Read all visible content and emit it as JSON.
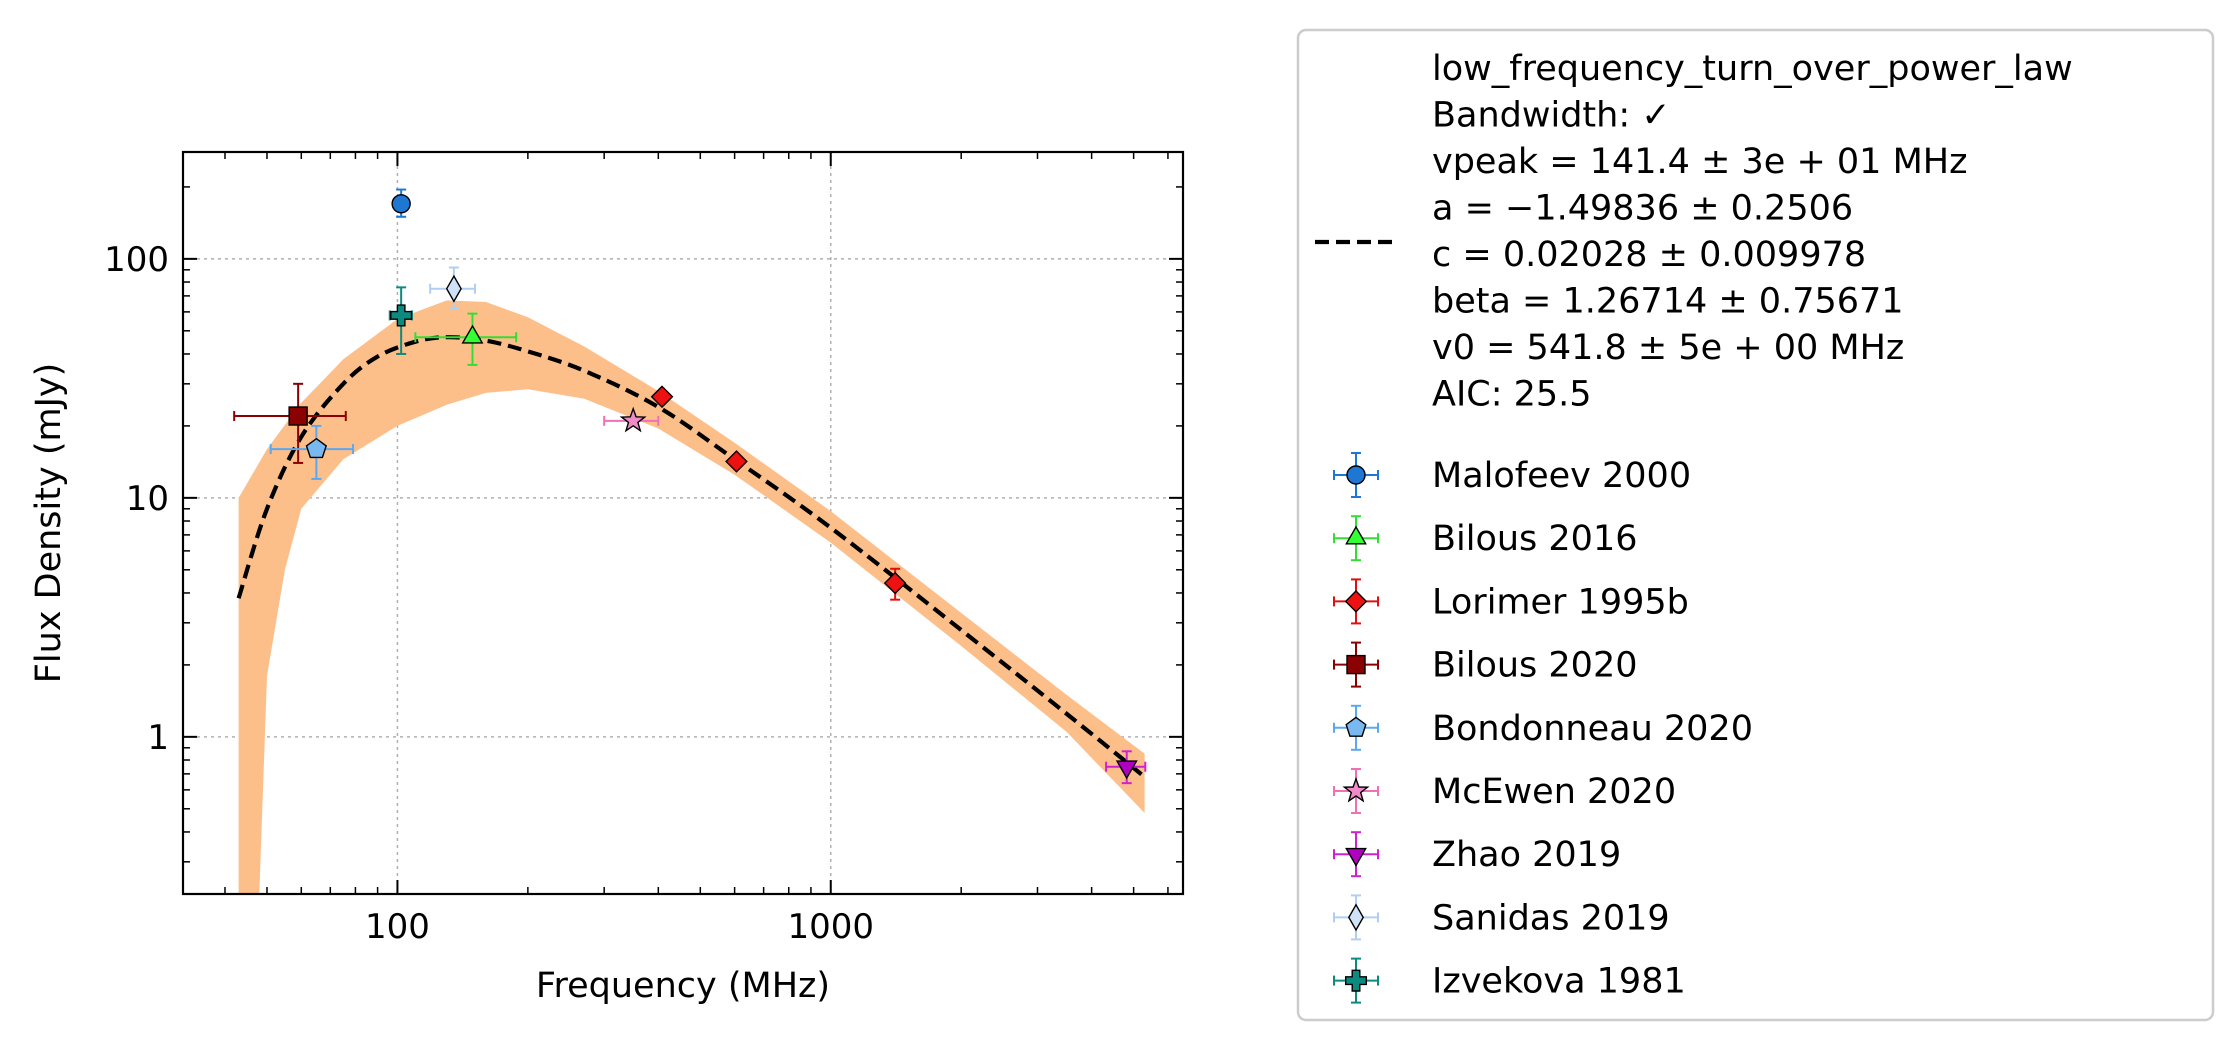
{
  "chart_data": {
    "type": "scatter",
    "xlabel": "Frequency (MHz)",
    "ylabel": "Flux Density (mJy)",
    "xscale": "log",
    "yscale": "log",
    "xlim": [
      32,
      6500
    ],
    "ylim": [
      0.22,
      280
    ],
    "xticks": [
      {
        "value": 100,
        "label": "100"
      },
      {
        "value": 1000,
        "label": "1000"
      }
    ],
    "yticks": [
      {
        "value": 1,
        "label": "1"
      },
      {
        "value": 10,
        "label": "10"
      },
      {
        "value": 100,
        "label": "100"
      }
    ],
    "grid": true,
    "legend_position": "outside-right",
    "fit": {
      "legend_lines": [
        "low_frequency_turn_over_power_law",
        "Bandwidth: ✓",
        "vpeak = 141.4 ± 3e + 01 MHz",
        "a = −1.49836 ± 0.2506",
        "c = 0.02028 ± 0.009978",
        "beta = 1.26714 ± 0.75671",
        "v0 = 541.8 ± 5e + 00 MHz",
        "AIC: 25.5"
      ],
      "line_color": "#000000",
      "band_color": "#fdbf8a",
      "curve": {
        "x": [
          43,
          50,
          60,
          75,
          90,
          110,
          130,
          160,
          200,
          270,
          400,
          600,
          1000,
          2000,
          3500,
          5300
        ],
        "y": [
          3.8,
          9,
          18,
          30,
          39,
          45,
          47,
          45.5,
          41,
          34,
          24,
          14.5,
          7.5,
          2.8,
          1.25,
          0.68
        ]
      },
      "band_upper": {
        "x": [
          43,
          50,
          60,
          75,
          100,
          130,
          160,
          200,
          270,
          400,
          600,
          1000,
          2000,
          3500,
          5300
        ],
        "y": [
          10,
          16,
          25,
          38,
          56,
          67,
          66,
          57,
          43,
          28,
          17,
          8.8,
          3.3,
          1.5,
          0.85
        ]
      },
      "band_lower": {
        "x": [
          43,
          48,
          50,
          55,
          60,
          75,
          100,
          130,
          160,
          200,
          270,
          400,
          600,
          1000,
          2000,
          3500,
          5300
        ],
        "y": [
          0.22,
          0.22,
          1.8,
          5,
          9,
          14.5,
          20,
          24.5,
          27.5,
          28.5,
          26,
          19.5,
          12.5,
          6.5,
          2.4,
          1.05,
          0.48
        ]
      }
    },
    "series": [
      {
        "name": "Malofeev 2000",
        "marker": "circle",
        "color": "#1f77d4",
        "ecolor": "#1f77d4",
        "points": [
          {
            "x": 102,
            "y": 170,
            "xerr": [
              0,
              0
            ],
            "yerr": [
              150,
              195
            ]
          }
        ]
      },
      {
        "name": "Bilous 2016",
        "marker": "triangle-up",
        "color": "#33ff33",
        "ecolor": "#33dd33",
        "points": [
          {
            "x": 149,
            "y": 47,
            "xerr": [
              110,
              188
            ],
            "yerr": [
              36,
              59
            ]
          }
        ]
      },
      {
        "name": "Lorimer 1995b",
        "marker": "diamond",
        "color": "#ee1111",
        "ecolor": "#dd1111",
        "points": [
          {
            "x": 408,
            "y": 26.5,
            "xerr": [
              0,
              0
            ],
            "yerr": [
              26.5,
              26.5
            ]
          },
          {
            "x": 606,
            "y": 14.2,
            "xerr": [
              0,
              0
            ],
            "yerr": [
              14.2,
              14.2
            ]
          },
          {
            "x": 1408,
            "y": 4.4,
            "xerr": [
              0,
              0
            ],
            "yerr": [
              3.75,
              5.05
            ]
          }
        ]
      },
      {
        "name": "Bilous 2020",
        "marker": "square",
        "color": "#8b0000",
        "ecolor": "#8b0000",
        "points": [
          {
            "x": 59,
            "y": 22,
            "xerr": [
              42,
              76
            ],
            "yerr": [
              14,
              30
            ]
          }
        ]
      },
      {
        "name": "Bondonneau 2020",
        "marker": "pentagon",
        "color": "#7ab8f0",
        "ecolor": "#5aa8f0",
        "points": [
          {
            "x": 65,
            "y": 16,
            "xerr": [
              51,
              79
            ],
            "yerr": [
              12,
              20
            ]
          }
        ]
      },
      {
        "name": "McEwen 2020",
        "marker": "star",
        "color": "#f08ac8",
        "ecolor": "#f070b8",
        "points": [
          {
            "x": 350,
            "y": 21,
            "xerr": [
              300,
              400
            ],
            "yerr": [
              21,
              21
            ]
          }
        ]
      },
      {
        "name": "Zhao 2019",
        "marker": "triangle-down",
        "color": "#b000c0",
        "ecolor": "#d020d0",
        "points": [
          {
            "x": 4820,
            "y": 0.75,
            "xerr": [
              4320,
              5320
            ],
            "yerr": [
              0.64,
              0.87
            ]
          }
        ]
      },
      {
        "name": "Sanidas 2019",
        "marker": "thin-diamond",
        "color": "#cfe2f7",
        "ecolor": "#b0cff0",
        "points": [
          {
            "x": 135,
            "y": 75,
            "xerr": [
              119,
              151
            ],
            "yerr": [
              62,
              92
            ]
          }
        ]
      },
      {
        "name": "Izvekova 1981",
        "marker": "plus",
        "color": "#0c8a80",
        "ecolor": "#0c8a80",
        "points": [
          {
            "x": 102,
            "y": 58,
            "xerr": [
              96,
              108
            ],
            "yerr": [
              40,
              76
            ]
          }
        ]
      }
    ]
  }
}
